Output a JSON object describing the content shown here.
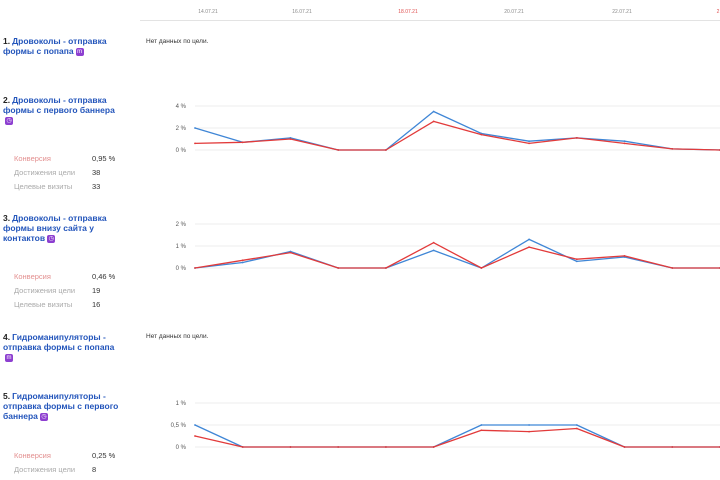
{
  "colors": {
    "visits_line": "#3f86d6",
    "conversion_line": "#e23a3a",
    "link": "#2355bb",
    "weekend_date": "#e05050",
    "badge": "#8d3fd0"
  },
  "icons": {
    "goal_badge": "goal-type-icon"
  },
  "dates": [
    {
      "label": "14.07.21",
      "weekend": false
    },
    {
      "label": "16.07.21",
      "weekend": false
    },
    {
      "label": "18.07.21",
      "weekend": true
    },
    {
      "label": "20.07.21",
      "weekend": false
    },
    {
      "label": "22.07.21",
      "weekend": false
    },
    {
      "label": "2",
      "weekend": true
    }
  ],
  "no_data_text": "Нет данных по цели.",
  "goals": [
    {
      "num": "1.",
      "title": "Дровоколы - отправка формы с попапа",
      "badge": "m"
    },
    {
      "num": "2.",
      "title": "Дровоколы - отправка формы с первого баннера",
      "badge": "◷",
      "stats": {
        "conversion_label": "Конверсия",
        "conversion": "0,95 %",
        "reaches_label": "Достижения цели",
        "reaches": "38",
        "visits_label": "Целевые визиты",
        "visits": "33"
      }
    },
    {
      "num": "3.",
      "title": "Дровоколы - отправка формы внизу сайта у контактов",
      "badge": "◷",
      "stats": {
        "conversion_label": "Конверсия",
        "conversion": "0,46 %",
        "reaches_label": "Достижения цели",
        "reaches": "19",
        "visits_label": "Целевые визиты",
        "visits": "16"
      }
    },
    {
      "num": "4.",
      "title": "Гидроманипуляторы - отправка формы с попапа",
      "badge": "m"
    },
    {
      "num": "5.",
      "title": "Гидроманипуляторы - отправка формы с первого баннера",
      "badge": "◷",
      "stats": {
        "conversion_label": "Конверсия",
        "conversion": "0,25 %",
        "reaches_label": "Достижения цели",
        "reaches": "8"
      }
    }
  ],
  "chart_data": [
    {
      "type": "line",
      "goal": "2",
      "ylim": [
        0,
        4
      ],
      "ytick_labels": [
        "4 %",
        "2 %",
        "0 %"
      ],
      "ytick_values": [
        4,
        2,
        0
      ],
      "x": [
        0,
        1,
        2,
        3,
        4,
        5,
        6,
        7,
        8,
        9,
        10,
        11
      ],
      "series": [
        {
          "name": "visits",
          "values": [
            2.0,
            0.7,
            1.1,
            0,
            0,
            3.5,
            1.5,
            0.8,
            1.1,
            0.8,
            0.1,
            0
          ]
        },
        {
          "name": "conversion",
          "values": [
            0.6,
            0.7,
            1.0,
            0,
            0,
            2.6,
            1.4,
            0.6,
            1.1,
            0.6,
            0.1,
            0
          ]
        }
      ]
    },
    {
      "type": "line",
      "goal": "3",
      "ylim": [
        0,
        2
      ],
      "ytick_labels": [
        "2 %",
        "1 %",
        "0 %"
      ],
      "ytick_values": [
        2,
        1,
        0
      ],
      "x": [
        0,
        1,
        2,
        3,
        4,
        5,
        6,
        7,
        8,
        9,
        10,
        11
      ],
      "series": [
        {
          "name": "visits",
          "values": [
            0,
            0.25,
            0.75,
            0,
            0,
            0.8,
            0,
            1.3,
            0.3,
            0.5,
            0,
            0
          ]
        },
        {
          "name": "conversion",
          "values": [
            0,
            0.35,
            0.7,
            0,
            0,
            1.15,
            0,
            0.95,
            0.4,
            0.55,
            0,
            0
          ]
        }
      ]
    },
    {
      "type": "line",
      "goal": "5",
      "ylim": [
        0,
        1
      ],
      "ytick_labels": [
        "1 %",
        "0,5 %",
        "0 %"
      ],
      "ytick_values": [
        1,
        0.5,
        0
      ],
      "x": [
        0,
        1,
        2,
        3,
        4,
        5,
        6,
        7,
        8,
        9,
        10,
        11
      ],
      "series": [
        {
          "name": "visits",
          "values": [
            0.5,
            0,
            0,
            0,
            0,
            0,
            0.5,
            0.5,
            0.5,
            0,
            0,
            0
          ]
        },
        {
          "name": "conversion",
          "values": [
            0.25,
            0,
            0,
            0,
            0,
            0,
            0.38,
            0.35,
            0.42,
            0,
            0,
            0
          ]
        }
      ]
    }
  ]
}
